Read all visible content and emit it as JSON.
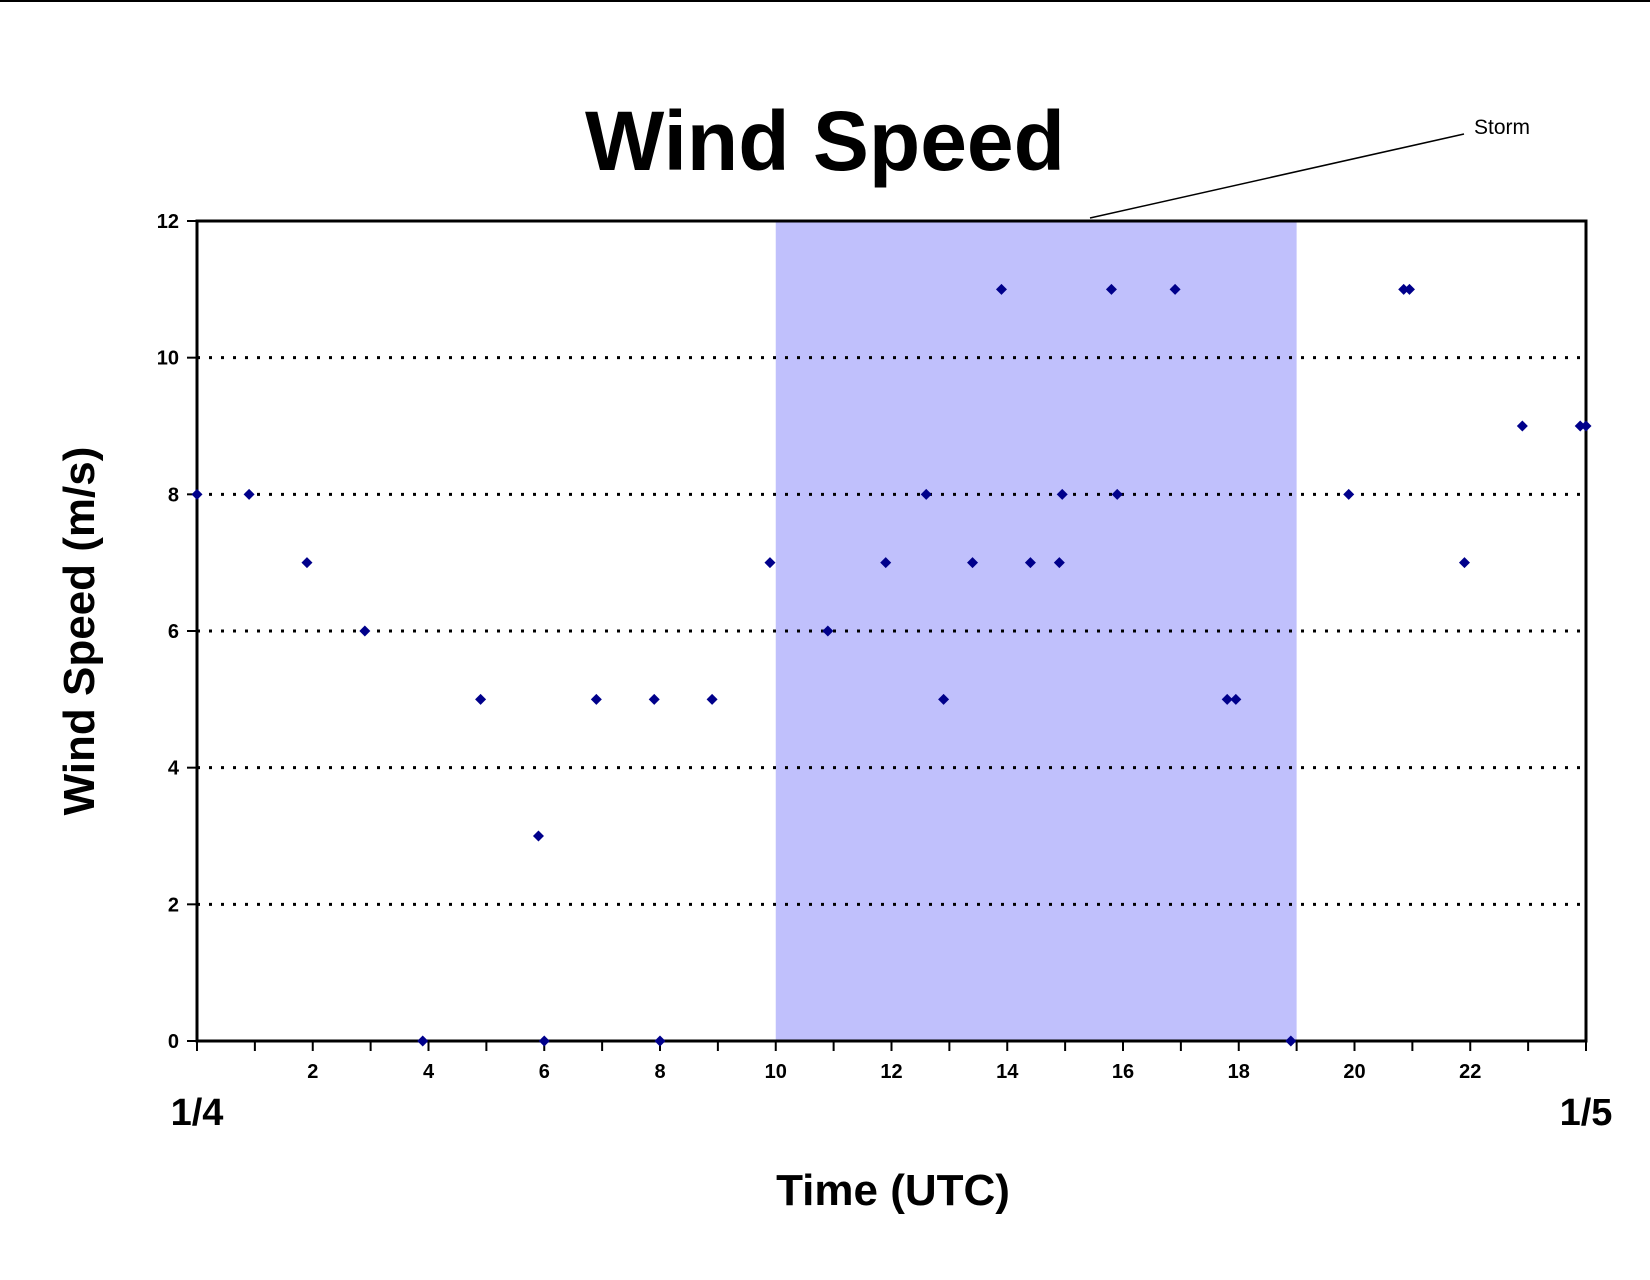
{
  "chart_data": {
    "type": "scatter",
    "title": "Wind Speed",
    "xlabel": "Time (UTC)",
    "ylabel": "Wind Speed (m/s)",
    "xlim": [
      0,
      24
    ],
    "ylim": [
      0,
      12
    ],
    "x_ticks": [
      2,
      4,
      6,
      8,
      10,
      12,
      14,
      16,
      18,
      20,
      22
    ],
    "y_ticks": [
      0,
      2,
      4,
      6,
      8,
      10,
      12
    ],
    "date_labels": [
      {
        "x": 0,
        "label": "1/4"
      },
      {
        "x": 24,
        "label": "1/5"
      }
    ],
    "grid": "horizontal dotted",
    "shaded_region": {
      "x_start": 10,
      "x_end": 19,
      "label": "Storm",
      "color": "#c0c0fc"
    },
    "marker_color": "#00008b",
    "points": [
      [
        0,
        8
      ],
      [
        0.9,
        8
      ],
      [
        1.9,
        7
      ],
      [
        2.9,
        6
      ],
      [
        3.9,
        0
      ],
      [
        4.9,
        5
      ],
      [
        5.9,
        3
      ],
      [
        6.0,
        0
      ],
      [
        6.9,
        5
      ],
      [
        7.9,
        5
      ],
      [
        8.0,
        0
      ],
      [
        8.9,
        5
      ],
      [
        9.9,
        7
      ],
      [
        10.9,
        6
      ],
      [
        11.9,
        7
      ],
      [
        12.6,
        8
      ],
      [
        12.9,
        5
      ],
      [
        13.4,
        7
      ],
      [
        13.9,
        11
      ],
      [
        14.4,
        7
      ],
      [
        14.9,
        7
      ],
      [
        14.95,
        8
      ],
      [
        15.8,
        11
      ],
      [
        15.9,
        8
      ],
      [
        16.9,
        11
      ],
      [
        17.8,
        5
      ],
      [
        17.95,
        5
      ],
      [
        18.9,
        0
      ],
      [
        19.9,
        8
      ],
      [
        20.85,
        11
      ],
      [
        20.95,
        11
      ],
      [
        21.9,
        7
      ],
      [
        22.9,
        9
      ],
      [
        23.9,
        9
      ],
      [
        24,
        9
      ]
    ]
  }
}
